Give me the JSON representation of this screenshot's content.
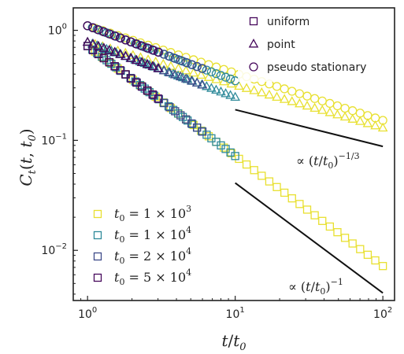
{
  "chart_data": {
    "type": "scatter",
    "x_scale": "log",
    "y_scale": "log",
    "xlim": [
      0.8,
      120
    ],
    "ylim": [
      0.0035,
      1.6
    ],
    "xlabel": "t / t0",
    "ylabel": "C_t(t, t0)",
    "x_ticks": [
      {
        "value": 1,
        "base": "10",
        "exp": "0"
      },
      {
        "value": 10,
        "base": "10",
        "exp": "1"
      },
      {
        "value": 100,
        "base": "10",
        "exp": "2"
      }
    ],
    "y_ticks": [
      {
        "value": 0.01,
        "base": "10",
        "exp": "−2"
      },
      {
        "value": 0.1,
        "base": "10",
        "exp": "−1"
      },
      {
        "value": 1,
        "base": "10",
        "exp": "0"
      }
    ],
    "marker_legend": {
      "position": "top-right",
      "entries": [
        {
          "marker": "square",
          "label": "uniform"
        },
        {
          "marker": "triangle",
          "label": "point"
        },
        {
          "marker": "circle",
          "label": "pseudo stationary"
        }
      ]
    },
    "color_legend": {
      "position": "bottom-left",
      "entries": [
        {
          "label": "t0 = 1 × 10^3",
          "color": "#e8e030",
          "tex": {
            "pre": "1 × 10",
            "exp": "3"
          }
        },
        {
          "label": "t0 = 1 × 10^4",
          "color": "#2f8a9a",
          "tex": {
            "pre": "1 × 10",
            "exp": "4"
          }
        },
        {
          "label": "t0 = 2 × 10^4",
          "color": "#3e4a89",
          "tex": {
            "pre": "2 × 10",
            "exp": "4"
          }
        },
        {
          "label": "t0 = 5 × 10^4",
          "color": "#46085c",
          "tex": {
            "pre": "5 × 10",
            "exp": "4"
          }
        }
      ]
    },
    "series": [
      {
        "marker": "square",
        "color": "#e8e030",
        "x_range": [
          1,
          100
        ],
        "n_points": 40,
        "law": "power",
        "a": 0.72,
        "p": -1.0
      },
      {
        "marker": "square",
        "color": "#2f8a9a",
        "x_range": [
          1,
          10
        ],
        "n_points": 32,
        "law": "power",
        "a": 0.72,
        "p": -1.0
      },
      {
        "marker": "square",
        "color": "#3e4a89",
        "x_range": [
          1,
          6
        ],
        "n_points": 22,
        "law": "power",
        "a": 0.72,
        "p": -1.0
      },
      {
        "marker": "square",
        "color": "#46085c",
        "x_range": [
          1,
          3
        ],
        "n_points": 14,
        "law": "power",
        "a": 0.72,
        "p": -1.0
      },
      {
        "marker": "triangle",
        "color": "#e8e030",
        "x_range": [
          1,
          100
        ],
        "n_points": 40,
        "law": "power",
        "a": 0.78,
        "p": -0.39
      },
      {
        "marker": "triangle",
        "color": "#2f8a9a",
        "x_range": [
          1,
          10
        ],
        "n_points": 32,
        "law": "power",
        "a": 0.78,
        "p": -0.5
      },
      {
        "marker": "triangle",
        "color": "#3e4a89",
        "x_range": [
          1,
          6
        ],
        "n_points": 22,
        "law": "power",
        "a": 0.78,
        "p": -0.5
      },
      {
        "marker": "triangle",
        "color": "#46085c",
        "x_range": [
          1,
          3
        ],
        "n_points": 14,
        "law": "power",
        "a": 0.78,
        "p": -0.5
      },
      {
        "marker": "circle",
        "color": "#e8e030",
        "x_range": [
          1,
          100
        ],
        "n_points": 40,
        "law": "power",
        "a": 1.1,
        "p": -0.43
      },
      {
        "marker": "circle",
        "color": "#2f8a9a",
        "x_range": [
          1,
          10
        ],
        "n_points": 32,
        "law": "power",
        "a": 1.1,
        "p": -0.5
      },
      {
        "marker": "circle",
        "color": "#3e4a89",
        "x_range": [
          1,
          6
        ],
        "n_points": 22,
        "law": "power",
        "a": 1.1,
        "p": -0.5
      },
      {
        "marker": "circle",
        "color": "#46085c",
        "x_range": [
          1,
          3
        ],
        "n_points": 14,
        "law": "power",
        "a": 1.1,
        "p": -0.5
      }
    ],
    "reference_lines": [
      {
        "name": "slope-minus-third",
        "x": [
          10,
          100
        ],
        "y": [
          0.19,
          0.088
        ],
        "label": "∝ (t/t0)^−1/3",
        "label_exp": "−1/3"
      },
      {
        "name": "slope-minus-one",
        "x": [
          10,
          100
        ],
        "y": [
          0.041,
          0.0041
        ],
        "label": "∝ (t/t0)^−1",
        "label_exp": "−1"
      }
    ]
  }
}
